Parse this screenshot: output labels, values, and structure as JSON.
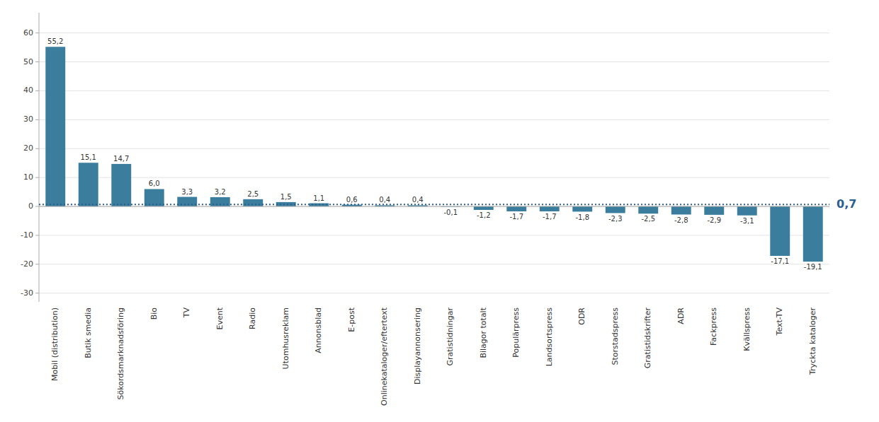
{
  "chart_data": {
    "type": "bar",
    "categories": [
      "Mobil (distribution)",
      "Butik smedia",
      "Sökordsmarknadsföring",
      "Bio",
      "TV",
      "Event",
      "Radio",
      "Utomhusreklam",
      "Annonsblad",
      "E-post",
      "Onlinekataloger/eftertext",
      "Displayannonsering",
      "Gratistidningar",
      "Bilagor totalt",
      "Populärpress",
      "Landsortspress",
      "ODR",
      "Storstadspress",
      "Gratistidskrifter",
      "ADR",
      "Fackpress",
      "Kvällspress",
      "Text-TV",
      "Tryckta kataloger"
    ],
    "values": [
      55.2,
      15.1,
      14.7,
      6.0,
      3.3,
      3.2,
      2.5,
      1.5,
      1.1,
      0.6,
      0.4,
      0.4,
      -0.1,
      -1.2,
      -1.7,
      -1.7,
      -1.8,
      -2.3,
      -2.5,
      -2.8,
      -2.9,
      -3.1,
      -17.1,
      -19.1
    ],
    "value_labels": [
      "55,2",
      "15,1",
      "14,7",
      "6,0",
      "3,3",
      "3,2",
      "2,5",
      "1,5",
      "1,1",
      "0,6",
      "0,4",
      "0,4",
      "-0,1",
      "-1,2",
      "-1,7",
      "-1,7",
      "-1,8",
      "-2,3",
      "-2,5",
      "-2,8",
      "-2,9",
      "-3,1",
      "-17,1",
      "-19,1"
    ],
    "data_labels": true,
    "color": "#3a7d9c",
    "ylim": [
      -33,
      67
    ],
    "yticks": [
      -30,
      -20,
      -10,
      0,
      10,
      20,
      30,
      40,
      50,
      60
    ],
    "grid": true,
    "annotations": [
      {
        "value": 0.7,
        "label": "0,7",
        "color": "#2b5f8e"
      }
    ]
  }
}
